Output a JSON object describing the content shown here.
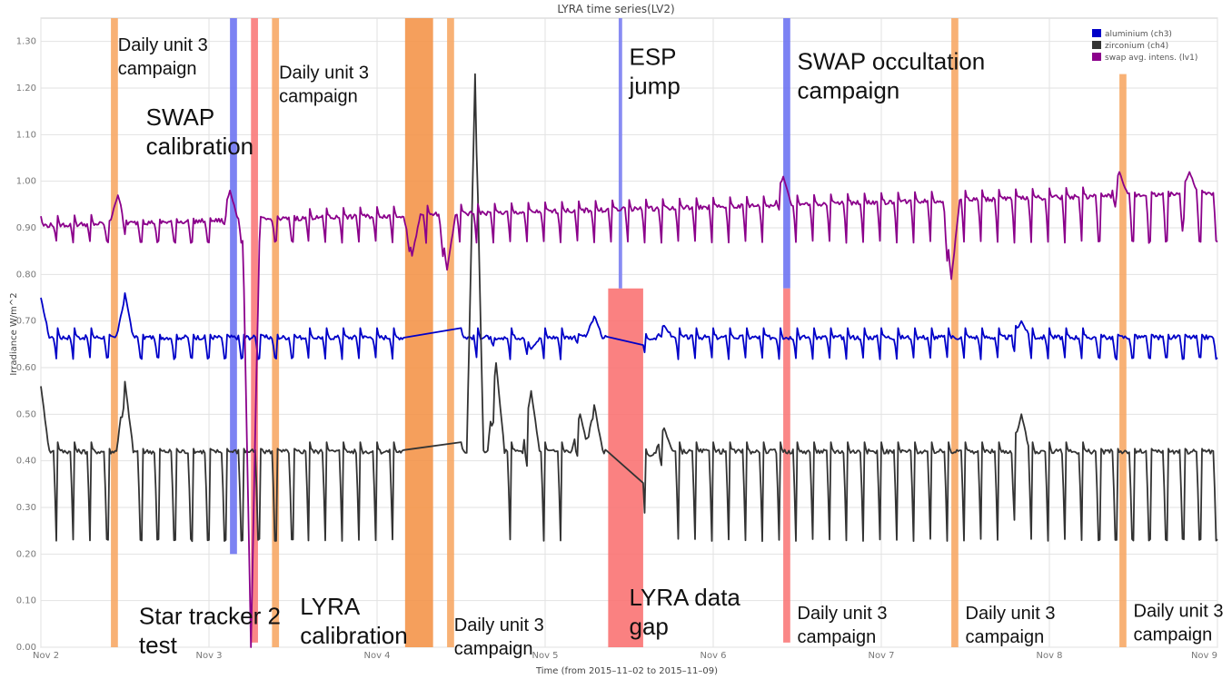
{
  "chart_data": {
    "type": "line",
    "title": "LYRA time series(LV2)",
    "xlabel": "Time (from 2015–11–02 to 2015–11–09)",
    "ylabel": "Irradiance W/m^2",
    "xlim": [
      "2015-11-02T00:00",
      "2015-11-09T00:00"
    ],
    "ylim": [
      0,
      1.35
    ],
    "x_ticks": [
      "Nov 2",
      "Nov 3",
      "Nov 4",
      "Nov 5",
      "Nov 6",
      "Nov 7",
      "Nov 8",
      "Nov 9"
    ],
    "y_ticks": [
      "0.00",
      "0.10",
      "0.20",
      "0.30",
      "0.40",
      "0.50",
      "0.60",
      "0.70",
      "0.80",
      "0.90",
      "1.00",
      "1.10",
      "1.20",
      "1.30"
    ],
    "grid": true,
    "legend_position": "top-right",
    "series": [
      {
        "name": "aluminium (ch3)",
        "color": "#0000c8",
        "baseline": 0.665,
        "low": 0.62,
        "spike_every_hours": 2.4,
        "x_range": [
          "2015-11-02T00:00",
          "2015-11-09T00:00"
        ],
        "features": [
          [
            "2015-11-02T00:00",
            0.75
          ],
          [
            "2015-11-02T12:00",
            0.76
          ],
          [
            "2015-11-04T17:00",
            0.66
          ],
          [
            "2015-11-04T22:00",
            0.64
          ],
          [
            "2015-11-05T05:00",
            0.67
          ],
          [
            "2015-11-05T07:00",
            0.71
          ],
          [
            "2015-11-05T15:00",
            0.66
          ],
          [
            "2015-11-05T17:00",
            0.69
          ],
          [
            "2015-11-07T20:00",
            0.7
          ]
        ],
        "gaps": [
          [
            "2015-11-04T04:00",
            "2015-11-04T12:00"
          ],
          [
            "2015-11-05T09:00",
            "2015-11-05T14:00"
          ]
        ]
      },
      {
        "name": "zirconium (ch4)",
        "color": "#333333",
        "baseline": 0.42,
        "low": 0.23,
        "spike_every_hours": 2.4,
        "x_range": [
          "2015-11-02T00:00",
          "2015-11-09T00:00"
        ],
        "features": [
          [
            "2015-11-02T00:00",
            0.56
          ],
          [
            "2015-11-02T12:00",
            0.57
          ],
          [
            "2015-11-04T14:00",
            1.23
          ],
          [
            "2015-11-04T17:00",
            0.61
          ],
          [
            "2015-11-04T22:00",
            0.55
          ],
          [
            "2015-11-05T05:00",
            0.5
          ],
          [
            "2015-11-05T07:00",
            0.52
          ],
          [
            "2015-11-05T15:00",
            0.41
          ],
          [
            "2015-11-05T17:00",
            0.47
          ],
          [
            "2015-11-07T20:00",
            0.5
          ]
        ],
        "gaps": [
          [
            "2015-11-04T04:00",
            "2015-11-04T12:00"
          ],
          [
            "2015-11-05T09:00",
            "2015-11-05T14:00"
          ]
        ]
      },
      {
        "name": "swap avg. intens. (lv1)",
        "color": "#8b008b",
        "baseline_start": 0.905,
        "baseline_end": 0.975,
        "low": 0.87,
        "spike_every_hours": 2.4,
        "x_range": [
          "2015-11-02T00:00",
          "2015-11-09T00:00"
        ],
        "features": [
          [
            "2015-11-02T11:00",
            0.97
          ],
          [
            "2015-11-03T03:00",
            0.98
          ],
          [
            "2015-11-03T06:00",
            0.0
          ],
          [
            "2015-11-04T05:00",
            0.84
          ],
          [
            "2015-11-04T10:00",
            0.81
          ],
          [
            "2015-11-06T10:00",
            1.01
          ],
          [
            "2015-11-07T10:00",
            0.79
          ],
          [
            "2015-11-08T10:00",
            1.02
          ],
          [
            "2015-11-08T20:00",
            1.02
          ]
        ]
      }
    ],
    "shaded_regions": [
      {
        "start": "2015-11-02T10:00",
        "end": "2015-11-02T11:00",
        "color": "#f7a866",
        "y_top": 1.35
      },
      {
        "start": "2015-11-03T03:00",
        "end": "2015-11-03T04:00",
        "color": "#6e74f2",
        "y_top": 1.35,
        "y_bottom": 0.2
      },
      {
        "start": "2015-11-03T06:00",
        "end": "2015-11-03T07:00",
        "color": "#f97a7a",
        "y_top": 1.35,
        "y_bottom": 0.01
      },
      {
        "start": "2015-11-03T09:00",
        "end": "2015-11-03T10:00",
        "color": "#f7a866",
        "y_top": 1.35
      },
      {
        "start": "2015-11-04T04:00",
        "end": "2015-11-04T08:00",
        "color": "#f4954a",
        "y_top": 1.35
      },
      {
        "start": "2015-11-04T10:00",
        "end": "2015-11-04T11:00",
        "color": "#f7a866",
        "y_top": 1.35
      },
      {
        "start": "2015-11-05T09:00",
        "end": "2015-11-05T14:00",
        "color": "#f97373",
        "y_top": 0.77
      },
      {
        "start": "2015-11-05T10:30",
        "end": "2015-11-05T11:00",
        "color": "#7b80f2",
        "y_top": 1.35,
        "y_bottom": 0.77
      },
      {
        "start": "2015-11-06T10:00",
        "end": "2015-11-06T11:00",
        "color": "#6e74f2",
        "y_top": 1.35,
        "y_bottom": 0.77
      },
      {
        "start": "2015-11-06T10:00",
        "end": "2015-11-06T11:00",
        "color": "#f97a7a",
        "y_top": 0.77,
        "y_bottom": 0.01
      },
      {
        "start": "2015-11-07T10:00",
        "end": "2015-11-07T11:00",
        "color": "#f7a866",
        "y_top": 1.35
      },
      {
        "start": "2015-11-08T10:00",
        "end": "2015-11-08T11:00",
        "color": "#f7a866",
        "y_top": 1.23
      }
    ],
    "annotations": [
      {
        "lines": [
          "Daily unit 3",
          "campaign"
        ],
        "size": "normal",
        "at": [
          "2015-11-02T11:00",
          1.28
        ]
      },
      {
        "lines": [
          "SWAP",
          "calibration"
        ],
        "size": "large",
        "at": [
          "2015-11-02T15:00",
          1.12
        ]
      },
      {
        "lines": [
          "Daily unit 3",
          "campaign"
        ],
        "size": "normal",
        "at": [
          "2015-11-03T10:00",
          1.22
        ]
      },
      {
        "lines": [
          "ESP",
          "jump"
        ],
        "size": "large",
        "at": [
          "2015-11-05T12:00",
          1.25
        ]
      },
      {
        "lines": [
          "SWAP occultation",
          "campaign"
        ],
        "size": "large",
        "at": [
          "2015-11-06T12:00",
          1.24
        ]
      },
      {
        "lines": [
          "Star tracker 2",
          "test"
        ],
        "size": "large",
        "at": [
          "2015-11-02T14:00",
          0.05
        ]
      },
      {
        "lines": [
          "LYRA",
          "calibration"
        ],
        "size": "large",
        "at": [
          "2015-11-03T13:00",
          0.07
        ]
      },
      {
        "lines": [
          "Daily unit 3",
          "campaign"
        ],
        "size": "normal",
        "at": [
          "2015-11-04T11:00",
          0.035
        ]
      },
      {
        "lines": [
          "LYRA data",
          "gap"
        ],
        "size": "large",
        "at": [
          "2015-11-05T12:00",
          0.09
        ]
      },
      {
        "lines": [
          "Daily unit 3",
          "campaign"
        ],
        "size": "normal",
        "at": [
          "2015-11-06T12:00",
          0.06
        ]
      },
      {
        "lines": [
          "Daily unit 3",
          "campaign"
        ],
        "size": "normal",
        "at": [
          "2015-11-07T12:00",
          0.06
        ]
      },
      {
        "lines": [
          "Daily unit 3",
          "campaign"
        ],
        "size": "normal",
        "at": [
          "2015-11-08T12:00",
          0.065
        ]
      }
    ]
  }
}
